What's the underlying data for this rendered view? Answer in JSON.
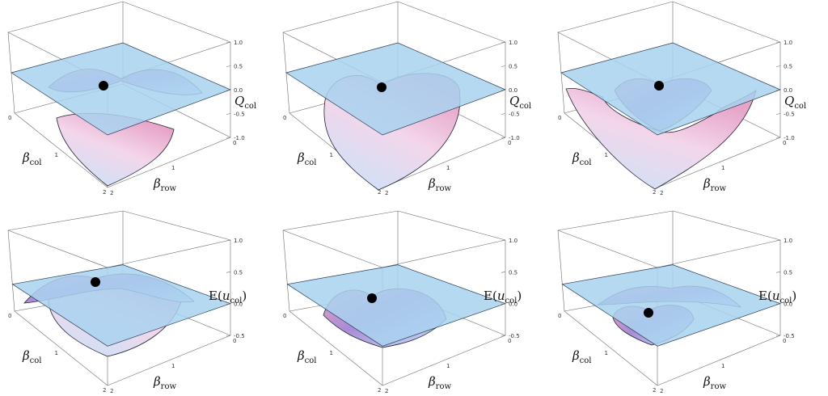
{
  "figure": {
    "colors": {
      "box": "#6b6b6b",
      "plane_fill": "#a9d2f0",
      "plane_stroke": "#2a3f55",
      "surface_fill_top": "#e7a3c8",
      "surface_fill_mid": "#a98bd6",
      "surface_fill_low": "#c6e4fb",
      "surface_stroke": "#222233",
      "dot": "#000000"
    },
    "axis_labels": {
      "beta_col": "β",
      "beta_col_sub": "col",
      "beta_row": "β",
      "beta_row_sub": "row",
      "q_col": "Q",
      "q_col_sub": "col",
      "e_prefix": "E(",
      "e_var": "u",
      "e_sub": "col",
      "e_suffix": ")"
    }
  },
  "chart_data": [
    {
      "type": "surface3d",
      "row": "top",
      "column": 1,
      "xlabel": "β_col",
      "ylabel": "β_row",
      "zlabel": "Q_col",
      "x_ticks": [
        "0",
        "1",
        "2"
      ],
      "y_ticks": [
        "2",
        "1",
        "0"
      ],
      "z_ticks": [
        "1.0",
        "0.5",
        "0.0",
        "-0.5",
        "-1.0"
      ],
      "zlim": [
        -1.0,
        1.0
      ],
      "plane_level": 0.0,
      "surface": "saddle-shaped sheet above the plane plus a separate bowl-shaped sheet below it",
      "marker": "black dot at the saddle point"
    },
    {
      "type": "surface3d",
      "row": "top",
      "column": 2,
      "xlabel": "β_col",
      "ylabel": "β_row",
      "zlabel": "Q_col",
      "x_ticks": [
        "0",
        "1",
        "2"
      ],
      "y_ticks": [
        "2",
        "1",
        "0"
      ],
      "z_ticks": [
        "1.0",
        "0.5",
        "0.0",
        "-0.5",
        "-1.0"
      ],
      "zlim": [
        -1.0,
        1.0
      ],
      "plane_level": 0.0,
      "surface": "heart-shaped sheet crossing the plane and dropping to a deep point",
      "marker": "black dot on the plane"
    },
    {
      "type": "surface3d",
      "row": "top",
      "column": 3,
      "xlabel": "β_col",
      "ylabel": "β_row",
      "zlabel": "Q_col",
      "x_ticks": [
        "0",
        "1",
        "2"
      ],
      "y_ticks": [
        "2",
        "1",
        "0"
      ],
      "z_ticks": [
        "1.0",
        "0.5",
        "0.0",
        "-0.5",
        "-1.0"
      ],
      "zlim": [
        -1.0,
        1.0
      ],
      "plane_level": 0.0,
      "surface": "heart-shaped opening in the plane with a sheet falling away below",
      "marker": "black dot on the plane"
    },
    {
      "type": "surface3d",
      "row": "bottom",
      "column": 1,
      "xlabel": "β_col",
      "ylabel": "β_row",
      "zlabel": "E(u_col)",
      "x_ticks": [
        "0",
        "1",
        "2"
      ],
      "y_ticks": [
        "2",
        "1",
        "0"
      ],
      "z_ticks": [
        "1.0",
        "0.5",
        "0.0",
        "-0.5"
      ],
      "zlim": [
        -0.5,
        1.0
      ],
      "plane_level": 0.0,
      "surface": "dome-shaped sheet rising above the plane",
      "marker": "black dot at the top of the dome"
    },
    {
      "type": "surface3d",
      "row": "bottom",
      "column": 2,
      "xlabel": "β_col",
      "ylabel": "β_row",
      "zlabel": "E(u_col)",
      "x_ticks": [
        "0",
        "1",
        "2"
      ],
      "y_ticks": [
        "2",
        "1",
        "0"
      ],
      "z_ticks": [
        "1.0",
        "0.5",
        "0.0",
        "-0.5"
      ],
      "zlim": [
        -0.5,
        1.0
      ],
      "plane_level": 0.0,
      "surface": "heart-shaped sheet lying on the plane",
      "marker": "black dot on the sheet"
    },
    {
      "type": "surface3d",
      "row": "bottom",
      "column": 3,
      "xlabel": "β_col",
      "ylabel": "β_row",
      "zlabel": "E(u_col)",
      "x_ticks": [
        "0",
        "1",
        "2"
      ],
      "y_ticks": [
        "2",
        "1",
        "0"
      ],
      "z_ticks": [
        "1.0",
        "0.5",
        "0.0",
        "-0.5"
      ],
      "zlim": [
        -0.5,
        1.0
      ],
      "plane_level": 0.0,
      "surface": "small ridge above the plane plus a heart-shaped sheet below it",
      "marker": "black dot on the lower sheet"
    }
  ]
}
